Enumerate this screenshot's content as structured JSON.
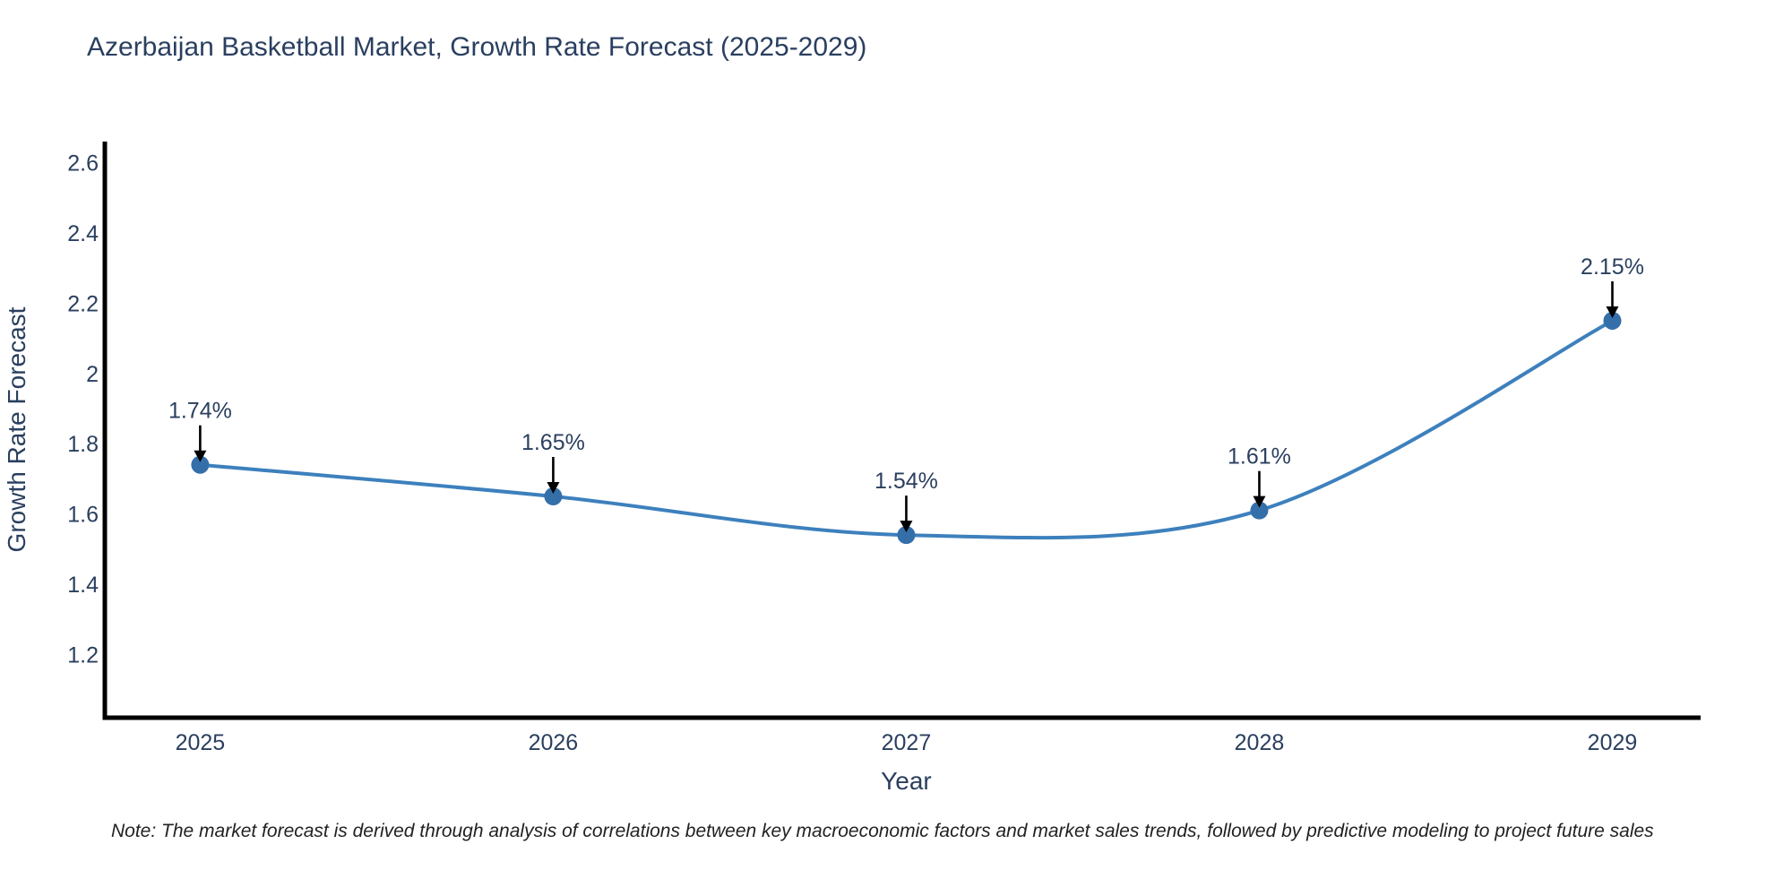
{
  "chart_data": {
    "type": "line",
    "title": "Azerbaijan Basketball Market, Growth Rate Forecast (2025-2029)",
    "xlabel": "Year",
    "ylabel": "Growth Rate Forecast",
    "x": [
      2025,
      2026,
      2027,
      2028,
      2029
    ],
    "series": [
      {
        "name": "Growth Rate Forecast",
        "values": [
          1.74,
          1.65,
          1.54,
          1.61,
          2.15
        ]
      }
    ],
    "point_labels": [
      "1.74%",
      "1.65%",
      "1.54%",
      "1.61%",
      "2.15%"
    ],
    "yticks": [
      1.2,
      1.4,
      1.6,
      1.8,
      2,
      2.2,
      2.4,
      2.6
    ],
    "xlim": [
      2024.73,
      2029.25
    ],
    "ylim": [
      1.02,
      2.66
    ],
    "grid": false,
    "legend": "none",
    "line_shape": "spline",
    "annotation_style": "arrow-down",
    "note": "Note: The market forecast is derived through analysis of correlations between key macroeconomic factors and market sales trends, followed by predictive modeling to project future sales",
    "colors": {
      "line": "#3d80bd",
      "marker": "#346fa9",
      "axis": "#000000",
      "arrow": "#000000",
      "text": "#2a3f5f",
      "note_text": "#222222",
      "background": "#ffffff"
    }
  }
}
